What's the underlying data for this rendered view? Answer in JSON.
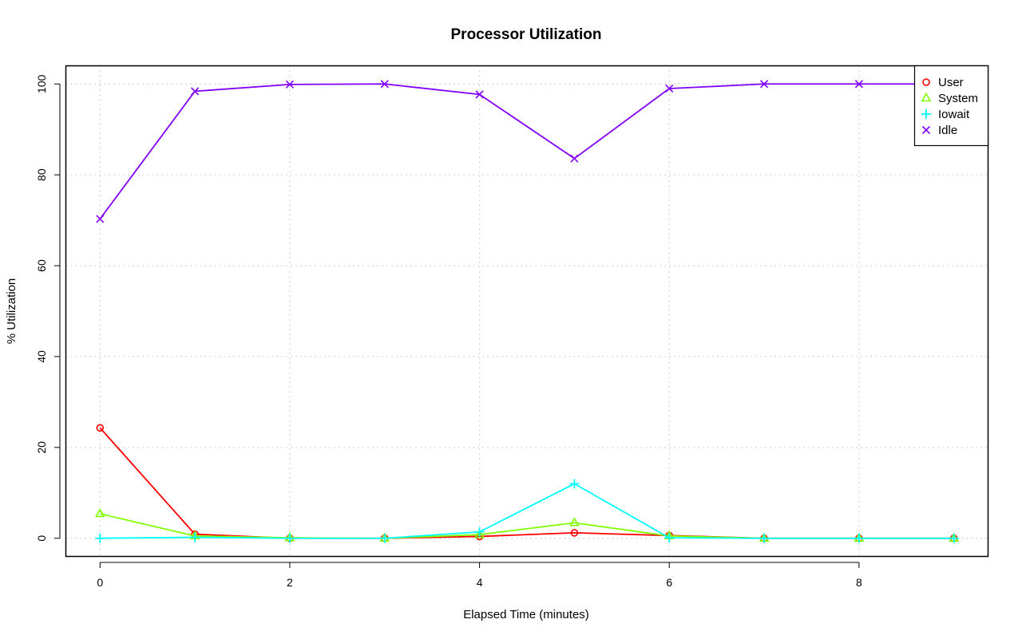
{
  "chart_data": {
    "type": "line",
    "title": "Processor Utilization",
    "xlabel": "Elapsed Time (minutes)",
    "ylabel": "% Utilization",
    "x": [
      0,
      1,
      2,
      3,
      4,
      5,
      6,
      7,
      8,
      9
    ],
    "xlim": [
      -0.36,
      9.36
    ],
    "ylim": [
      -4,
      104
    ],
    "xticks": [
      0,
      2,
      4,
      6,
      8
    ],
    "yticks": [
      0,
      20,
      40,
      60,
      80,
      100
    ],
    "grid": true,
    "legend_position": "top-right",
    "series": [
      {
        "name": "User",
        "color": "#FF0000",
        "marker": "circle",
        "values": [
          24.3,
          0.9,
          0.0,
          0.0,
          0.4,
          1.2,
          0.6,
          0.0,
          0.0,
          0.0
        ]
      },
      {
        "name": "System",
        "color": "#80FF00",
        "marker": "triangle",
        "values": [
          5.4,
          0.5,
          0.1,
          0.0,
          0.8,
          3.4,
          0.5,
          0.0,
          0.0,
          0.0
        ]
      },
      {
        "name": "Iowait",
        "color": "#00FFFF",
        "marker": "plus",
        "values": [
          0.0,
          0.2,
          0.0,
          0.0,
          1.4,
          12.0,
          0.1,
          0.0,
          0.0,
          0.0
        ]
      },
      {
        "name": "Idle",
        "color": "#8000FF",
        "marker": "cross",
        "values": [
          70.3,
          98.4,
          99.9,
          100.0,
          97.7,
          83.6,
          99.0,
          100.0,
          100.0,
          100.0
        ]
      }
    ]
  }
}
